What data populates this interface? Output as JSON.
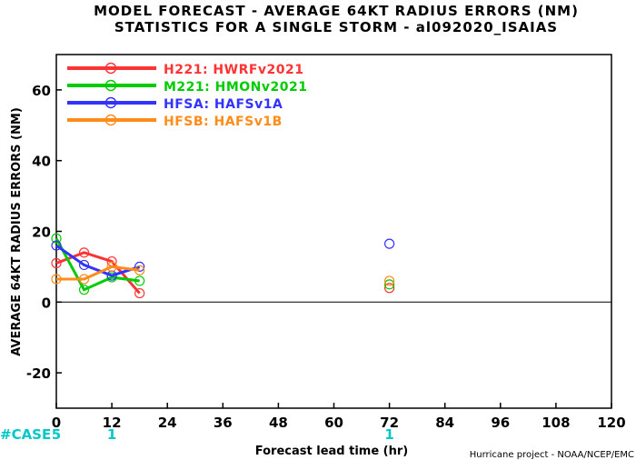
{
  "chart_data": {
    "type": "line",
    "title_line1": "MODEL FORECAST - AVERAGE 64KT RADIUS ERRORS (NM)",
    "title_line2": "STATISTICS FOR A SINGLE STORM - al092020_ISAIAS",
    "xlabel": "Forecast lead time (hr)",
    "ylabel": "AVERAGE 64KT RADIUS ERRORS (NM)",
    "xlim": [
      0,
      120
    ],
    "ylim": [
      -30,
      70
    ],
    "x_ticks": [
      0,
      12,
      24,
      36,
      48,
      60,
      72,
      84,
      96,
      108,
      120
    ],
    "y_ticks": [
      -20,
      0,
      20,
      40,
      60
    ],
    "zero_line": true,
    "grid": false,
    "legend_position": "top-left",
    "series": [
      {
        "name": "H221:  HWRFv2021",
        "color": "#ff3333",
        "x": [
          0,
          6,
          12,
          18
        ],
        "y": [
          11,
          14,
          11.5,
          2.5
        ],
        "extra_x": [
          72
        ],
        "extra_y": [
          4
        ]
      },
      {
        "name": "M221:  HMONv2021",
        "color": "#00cc00",
        "x": [
          0,
          6,
          12,
          18
        ],
        "y": [
          18,
          3.5,
          7,
          6
        ],
        "extra_x": [
          72
        ],
        "extra_y": [
          5
        ]
      },
      {
        "name": "HFSA:  HAFSv1A",
        "color": "#3333ff",
        "x": [
          0,
          6,
          12,
          18
        ],
        "y": [
          16,
          10.5,
          7.5,
          10
        ],
        "extra_x": [
          72
        ],
        "extra_y": [
          16.5
        ]
      },
      {
        "name": "HFSB:  HAFSv1B",
        "color": "#ff8c1a",
        "x": [
          0,
          6,
          12,
          18
        ],
        "y": [
          6.5,
          6.5,
          10,
          9
        ],
        "extra_x": [
          72
        ],
        "extra_y": [
          6
        ]
      }
    ],
    "case_label": "#CASE",
    "cases": [
      {
        "x": 0,
        "count": "5"
      },
      {
        "x": 12,
        "count": "1"
      },
      {
        "x": 72,
        "count": "1"
      }
    ],
    "credit": "Hurricane project - NOAA/NCEP/EMC"
  },
  "colors": {
    "axis": "#000000",
    "case_text": "#00c8c8",
    "background": "#ffffff"
  }
}
